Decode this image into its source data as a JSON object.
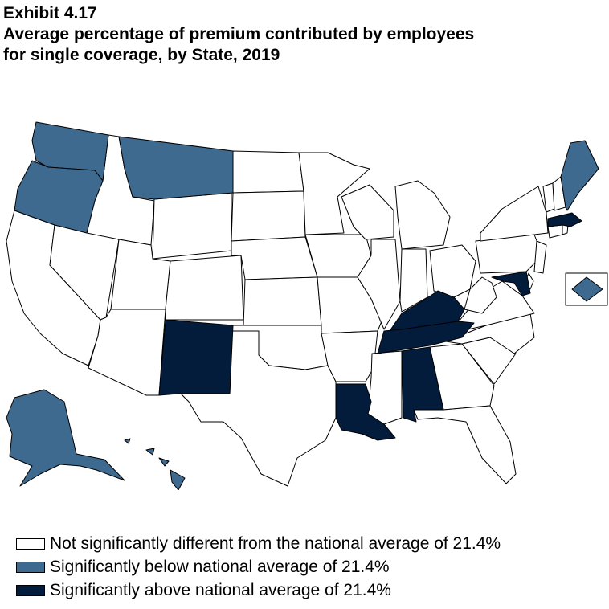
{
  "header": {
    "exhibit": "Exhibit 4.17",
    "title_line1": "Average percentage of premium contributed by employees",
    "title_line2": "for single coverage, by State, 2019"
  },
  "colors": {
    "not_different": "#ffffff",
    "below": "#3e6a90",
    "above": "#031c3b",
    "border": "#000000"
  },
  "map": {
    "below_states": [
      "WA",
      "OR",
      "MT",
      "ME",
      "AK",
      "HI",
      "DC"
    ],
    "above_states": [
      "NM",
      "KY",
      "TN",
      "AL",
      "LA",
      "MD",
      "MA"
    ],
    "inset": "DC"
  },
  "legend": {
    "items": [
      {
        "label": "Not significantly different from the national average of 21.4%",
        "color": "#ffffff"
      },
      {
        "label": "Significantly below national average of 21.4%",
        "color": "#3e6a90"
      },
      {
        "label": "Significantly above national average of 21.4%",
        "color": "#031c3b"
      }
    ]
  }
}
